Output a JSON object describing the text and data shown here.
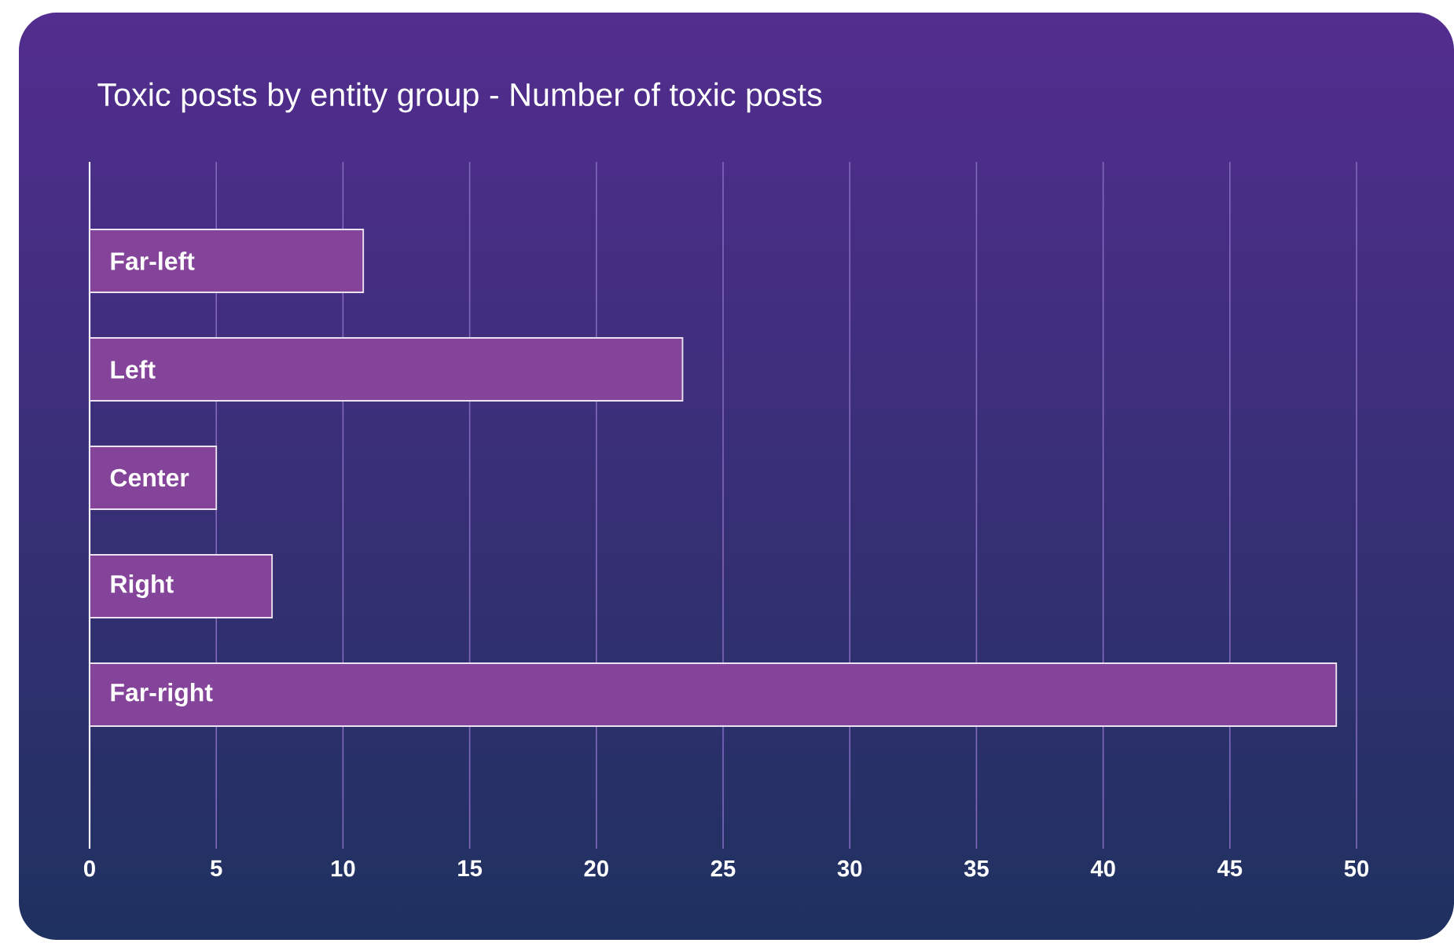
{
  "chart_data": {
    "type": "bar",
    "orientation": "horizontal",
    "title": "Toxic posts by entity group - Number of toxic posts",
    "categories": [
      "Far-left",
      "Left",
      "Center",
      "Right",
      "Far-right"
    ],
    "values": [
      10.8,
      23.4,
      5,
      7.2,
      49.2
    ],
    "color": "#84449a",
    "xlim": [
      0,
      50
    ],
    "xticks": [
      0,
      5,
      10,
      15,
      20,
      25,
      30,
      35,
      40,
      45,
      50
    ],
    "grid": "x"
  }
}
